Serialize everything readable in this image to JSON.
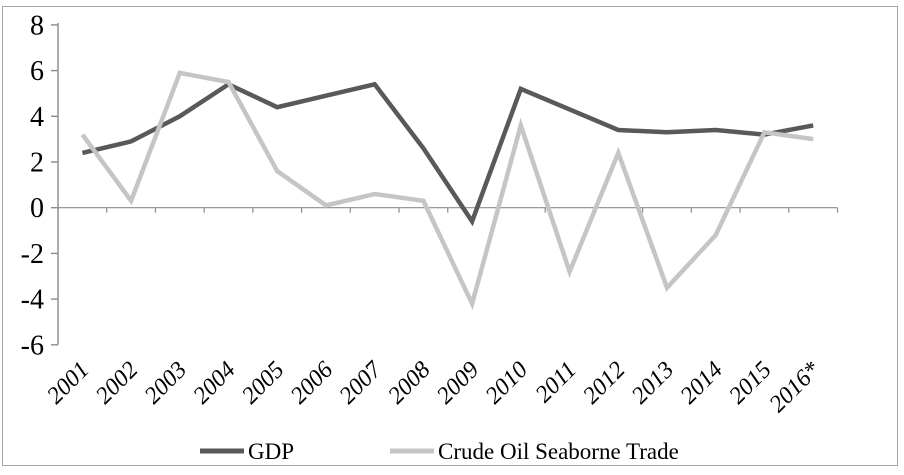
{
  "chart_data": {
    "type": "line",
    "title": "",
    "xlabel": "",
    "ylabel": "",
    "categories": [
      "2001",
      "2002",
      "2003",
      "2004",
      "2005",
      "2006",
      "2007",
      "2008",
      "2009",
      "2010",
      "2011",
      "2012",
      "2013",
      "2014",
      "2015",
      "2016*"
    ],
    "series": [
      {
        "name": "GDP",
        "color": "#595959",
        "values": [
          2.4,
          2.9,
          4.0,
          5.4,
          4.4,
          4.9,
          5.4,
          2.6,
          -0.6,
          5.2,
          4.3,
          3.4,
          3.3,
          3.4,
          3.2,
          3.6
        ]
      },
      {
        "name": "Crude Oil Seaborne Trade",
        "color": "#c5c5c5",
        "values": [
          3.2,
          0.3,
          5.9,
          5.5,
          1.6,
          0.1,
          0.6,
          0.3,
          -4.2,
          3.6,
          -2.8,
          2.4,
          -3.5,
          -1.2,
          3.3,
          3.0
        ]
      }
    ],
    "y_ticks": [
      8,
      6,
      4,
      2,
      0,
      -2,
      -4,
      -6
    ],
    "ylim": [
      -6,
      8
    ],
    "grid": false,
    "legend_position": "bottom",
    "axis_color": "#8c8c8c",
    "frame_color": "#a6a6a6"
  }
}
